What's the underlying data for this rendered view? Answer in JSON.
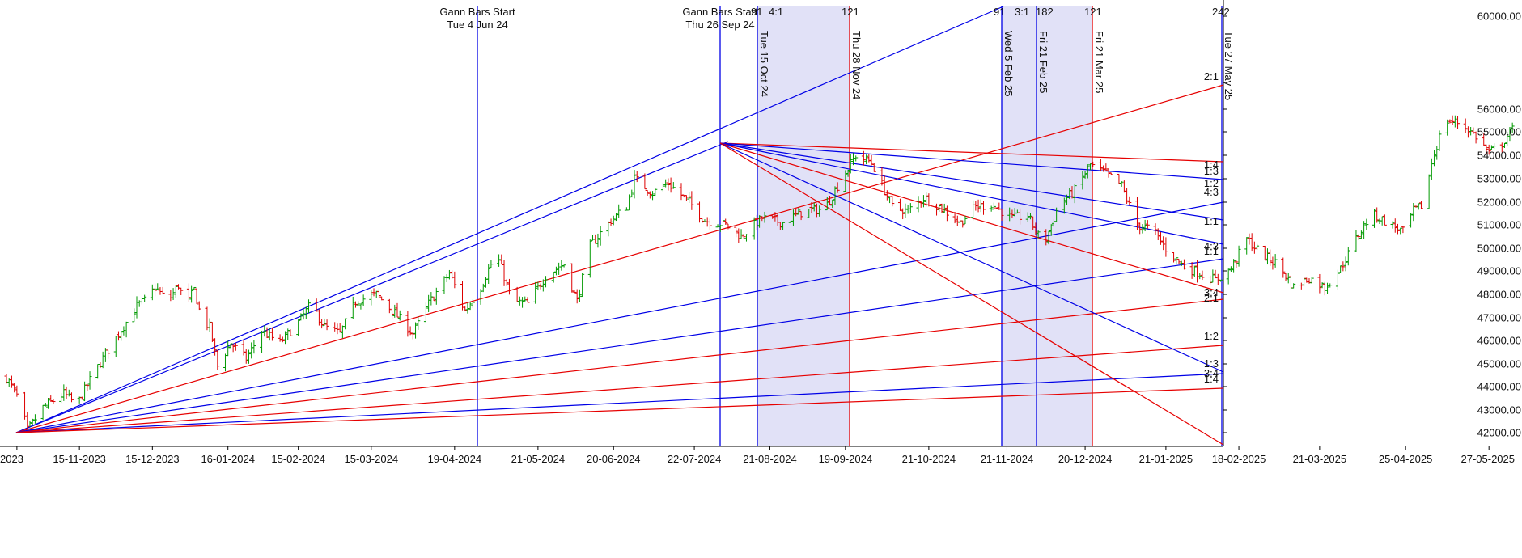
{
  "chart_data": {
    "type": "line",
    "subtype": "OHLC price bars with Gann fan angles and cycle time bands",
    "x_axis": {
      "tick_labels": [
        "2023",
        "15-11-2023",
        "15-12-2023",
        "16-01-2024",
        "15-02-2024",
        "15-03-2024",
        "19-04-2024",
        "21-05-2024",
        "20-06-2024",
        "22-07-2024",
        "21-08-2024",
        "19-09-2024",
        "21-10-2024",
        "21-11-2024",
        "20-12-2024",
        "21-01-2025",
        "18-02-2025",
        "21-03-2025",
        "25-04-2025",
        "27-05-2025"
      ],
      "tick_days": [
        4,
        28,
        56,
        85,
        112,
        140,
        172,
        204,
        233,
        264,
        293,
        322,
        354,
        384,
        414,
        445,
        473,
        504,
        537,
        569
      ]
    },
    "y_axis": {
      "tick_labels": [
        "60000.00",
        "56000.00",
        "55000.00",
        "54000.00",
        "53000.00",
        "52000.00",
        "51000.00",
        "50000.00",
        "49000.00",
        "48000.00",
        "47000.00",
        "46000.00",
        "45000.00",
        "44000.00",
        "43000.00",
        "42000.00"
      ],
      "tick_values": [
        60000,
        56000,
        55000,
        54000,
        53000,
        52000,
        51000,
        50000,
        49000,
        48000,
        47000,
        46000,
        45000,
        44000,
        43000,
        42000
      ],
      "scale": "nonlinear (upper segment compressed)"
    },
    "price_anchors": [
      [
        0,
        44400
      ],
      [
        5,
        43400
      ],
      [
        8,
        42100
      ],
      [
        14,
        43100
      ],
      [
        22,
        43700
      ],
      [
        27,
        43200
      ],
      [
        33,
        44500
      ],
      [
        40,
        45800
      ],
      [
        46,
        46800
      ],
      [
        50,
        47500
      ],
      [
        54,
        47800
      ],
      [
        57,
        48300
      ],
      [
        62,
        47700
      ],
      [
        66,
        48400
      ],
      [
        69,
        47500
      ],
      [
        72,
        48200
      ],
      [
        75,
        46900
      ],
      [
        78,
        46600
      ],
      [
        81,
        44900
      ],
      [
        86,
        45900
      ],
      [
        92,
        45200
      ],
      [
        98,
        46400
      ],
      [
        105,
        45900
      ],
      [
        112,
        46800
      ],
      [
        117,
        47600
      ],
      [
        122,
        46600
      ],
      [
        128,
        46300
      ],
      [
        134,
        47700
      ],
      [
        142,
        48000
      ],
      [
        149,
        47200
      ],
      [
        156,
        46300
      ],
      [
        162,
        47600
      ],
      [
        170,
        48900
      ],
      [
        176,
        47300
      ],
      [
        182,
        48300
      ],
      [
        188,
        49800
      ],
      [
        194,
        47700
      ],
      [
        200,
        47600
      ],
      [
        207,
        48800
      ],
      [
        214,
        49300
      ],
      [
        219,
        47700
      ],
      [
        224,
        50100
      ],
      [
        232,
        51200
      ],
      [
        238,
        51800
      ],
      [
        241,
        53000
      ],
      [
        248,
        52400
      ],
      [
        254,
        52800
      ],
      [
        262,
        52000
      ],
      [
        268,
        51200
      ],
      [
        276,
        51000
      ],
      [
        282,
        50500
      ],
      [
        290,
        51300
      ],
      [
        298,
        51100
      ],
      [
        306,
        51600
      ],
      [
        314,
        51700
      ],
      [
        320,
        52900
      ],
      [
        326,
        54000
      ],
      [
        332,
        53700
      ],
      [
        340,
        51800
      ],
      [
        346,
        51600
      ],
      [
        352,
        52200
      ],
      [
        358,
        51800
      ],
      [
        366,
        51100
      ],
      [
        372,
        51800
      ],
      [
        378,
        51900
      ],
      [
        386,
        51300
      ],
      [
        392,
        51400
      ],
      [
        398,
        50100
      ],
      [
        404,
        51900
      ],
      [
        410,
        52500
      ],
      [
        416,
        53600
      ],
      [
        422,
        53200
      ],
      [
        428,
        52700
      ],
      [
        434,
        51000
      ],
      [
        440,
        50800
      ],
      [
        446,
        49800
      ],
      [
        452,
        49200
      ],
      [
        458,
        48900
      ],
      [
        464,
        48600
      ],
      [
        470,
        49100
      ],
      [
        476,
        50400
      ],
      [
        482,
        49700
      ],
      [
        488,
        49300
      ],
      [
        494,
        48300
      ],
      [
        500,
        48700
      ],
      [
        506,
        48300
      ],
      [
        512,
        49100
      ],
      [
        518,
        50400
      ],
      [
        524,
        51500
      ],
      [
        530,
        51100
      ],
      [
        536,
        50700
      ],
      [
        540,
        51600
      ],
      [
        544,
        51900
      ],
      [
        547,
        53700
      ],
      [
        552,
        55500
      ],
      [
        558,
        55400
      ],
      [
        564,
        54800
      ],
      [
        569,
        54100
      ],
      [
        574,
        54500
      ],
      [
        578,
        55100
      ]
    ],
    "time_markers": [
      {
        "label": "Tue 4 Jun 24",
        "color": "#0000e6"
      },
      {
        "label": "Thu 26 Sep 24",
        "color": "#0000e6"
      },
      {
        "label": "Tue 15 Oct 24",
        "color": "#0000e6"
      },
      {
        "label": "Thu 28 Nov 24",
        "color": "#e60000"
      },
      {
        "label": "Wed 5 Feb 25",
        "color": "#0000e6"
      },
      {
        "label": "Fri 21 Feb 25",
        "color": "#0000e6"
      },
      {
        "label": "Fri 21 Mar 25",
        "color": "#e60000"
      },
      {
        "label": "Tue 27 May 25",
        "color": "#0000e6"
      }
    ],
    "annotations": {
      "start_1_title": "Gann Bars Start",
      "start_1_date": "Tue 4 Jun 24",
      "start_2_title": "Gann Bars Start",
      "start_2_date": "Thu 26 Sep 24",
      "count_91_a": "91",
      "ratio_4_1": "4:1",
      "count_121_a": "121",
      "count_91_b": "91",
      "ratio_3_1": "3:1",
      "count_182": "182",
      "count_121_b": "121",
      "count_242": "242"
    },
    "fan_labels": [
      "2:1",
      "1:4",
      "1:3",
      "1:2",
      "4:3",
      "1:1",
      "4:3",
      "1:1",
      "3:4",
      "2:1",
      "1:2",
      "1:3",
      "3:4",
      "1:4"
    ],
    "colors": {
      "blue": "#0000e6",
      "red": "#e60000",
      "up_bar": "#009900",
      "down_bar": "#dd0000",
      "band_fill": "#c8c8f0"
    }
  }
}
